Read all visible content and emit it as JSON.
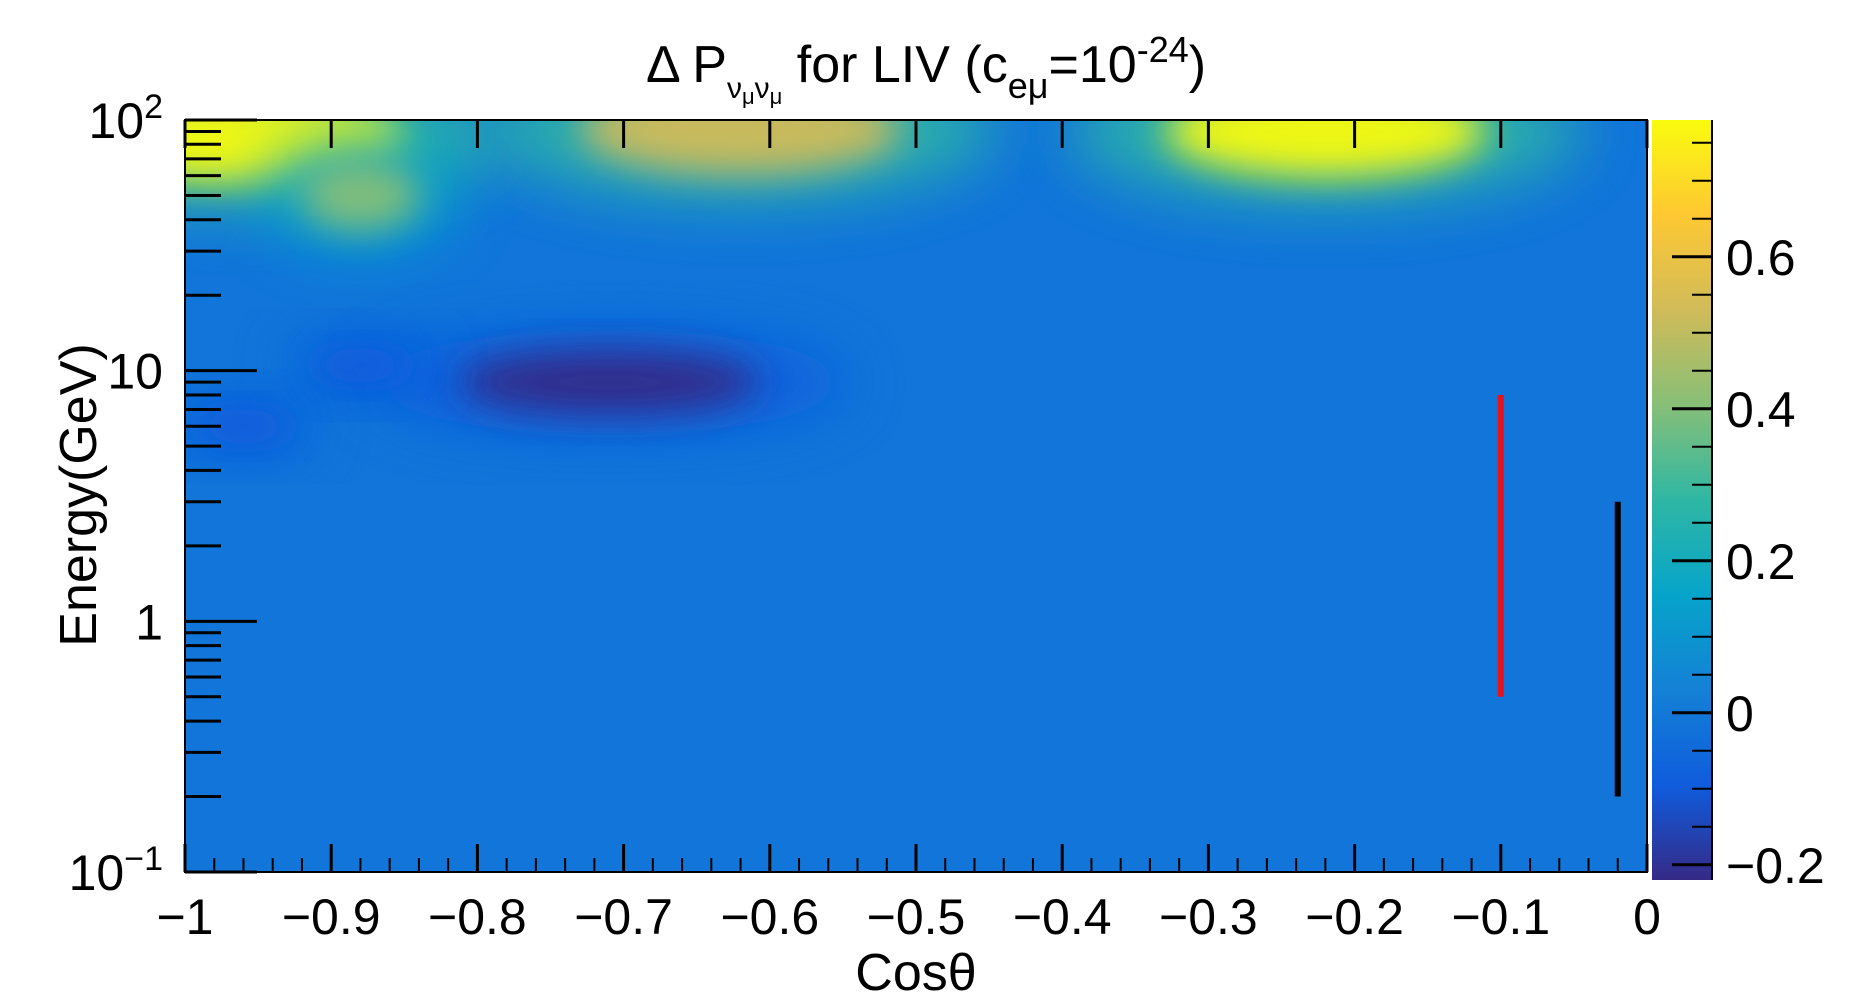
{
  "chart_data": {
    "type": "heatmap",
    "title": {
      "prefix": "Δ P",
      "sub_a": "ν",
      "sub_a2": "μ",
      "sub_b": "ν",
      "sub_b2": "μ",
      "mid": " for LIV (c",
      "coef_sub": "eμ",
      "eq": "=10",
      "exp": "-24",
      "suffix": ")"
    },
    "xlabel": "Cosθ",
    "ylabel": "Energy(GeV)",
    "x_range": [
      -1,
      0
    ],
    "y_range": [
      0.1,
      100
    ],
    "y_scale": "log",
    "z_range": [
      -0.22,
      0.78
    ],
    "x_ticks": [
      {
        "value": -1,
        "label": "−1"
      },
      {
        "value": -0.9,
        "label": "−0.9"
      },
      {
        "value": -0.8,
        "label": "−0.8"
      },
      {
        "value": -0.7,
        "label": "−0.7"
      },
      {
        "value": -0.6,
        "label": "−0.6"
      },
      {
        "value": -0.5,
        "label": "−0.5"
      },
      {
        "value": -0.4,
        "label": "−0.4"
      },
      {
        "value": -0.3,
        "label": "−0.3"
      },
      {
        "value": -0.2,
        "label": "−0.2"
      },
      {
        "value": -0.1,
        "label": "−0.1"
      },
      {
        "value": 0,
        "label": "0"
      }
    ],
    "y_ticks": [
      {
        "value": 0.1,
        "base": "10",
        "exp": "−1"
      },
      {
        "value": 1,
        "base": "1",
        "exp": ""
      },
      {
        "value": 10,
        "base": "10",
        "exp": ""
      },
      {
        "value": 100,
        "base": "10",
        "exp": "2"
      }
    ],
    "z_ticks": [
      {
        "value": -0.2,
        "label": "−0.2"
      },
      {
        "value": 0,
        "label": "0"
      },
      {
        "value": 0.2,
        "label": "0.2"
      },
      {
        "value": 0.4,
        "label": "0.4"
      },
      {
        "value": 0.6,
        "label": "0.6"
      }
    ],
    "features": [
      {
        "kind": "peak",
        "x": -0.22,
        "y": 90,
        "z": 0.75
      },
      {
        "kind": "peak",
        "x": -0.96,
        "y": 85,
        "z": 0.72
      },
      {
        "kind": "peak",
        "x": -0.62,
        "y": 92,
        "z": 0.55
      },
      {
        "kind": "peak",
        "x": -0.88,
        "y": 50,
        "z": 0.45
      },
      {
        "kind": "trough",
        "x": -0.71,
        "y": 9,
        "z": -0.2
      },
      {
        "kind": "trough",
        "x": -0.88,
        "y": 10.5,
        "z": -0.1
      },
      {
        "kind": "trough",
        "x": -0.96,
        "y": 6,
        "z": -0.08
      }
    ],
    "markers": [
      {
        "name": "red-line",
        "color": "#e8121c",
        "x": -0.1,
        "y_min": 0.5,
        "y_max": 8
      },
      {
        "name": "black-line",
        "color": "#000000",
        "x": -0.02,
        "y_min": 0.2,
        "y_max": 3
      }
    ],
    "colormap": [
      "#352a87",
      "#0f5cdd",
      "#1481d6",
      "#06a4ca",
      "#2eb7a4",
      "#87bf77",
      "#d1bb59",
      "#fec832",
      "#f9fb0e"
    ]
  }
}
